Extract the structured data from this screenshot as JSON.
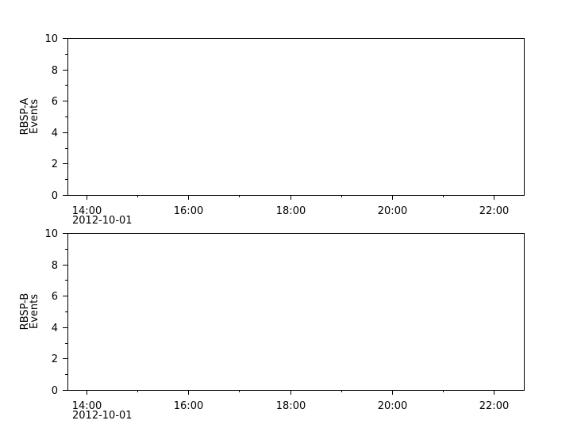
{
  "chart_data": [
    {
      "type": "scatter",
      "ylabel": [
        "RBSP-A",
        "Events"
      ],
      "ylim": [
        0,
        10
      ],
      "yticks": [
        0,
        2,
        4,
        6,
        8,
        10
      ],
      "yminor": [
        1,
        3,
        5,
        7,
        9
      ],
      "xlim": [
        "13:37",
        "22:36"
      ],
      "xticks": [
        "14:00",
        "16:00",
        "18:00",
        "20:00",
        "22:00"
      ],
      "xminor": [
        "15:00",
        "17:00",
        "19:00",
        "21:00"
      ],
      "date_label": "2012-10-01",
      "grid": false,
      "points": []
    },
    {
      "type": "scatter",
      "ylabel": [
        "RBSP-B",
        "Events"
      ],
      "ylim": [
        0,
        10
      ],
      "yticks": [
        0,
        2,
        4,
        6,
        8,
        10
      ],
      "yminor": [
        1,
        3,
        5,
        7,
        9
      ],
      "xlim": [
        "13:37",
        "22:36"
      ],
      "xticks": [
        "14:00",
        "16:00",
        "18:00",
        "20:00",
        "22:00"
      ],
      "xminor": [
        "15:00",
        "17:00",
        "19:00",
        "21:00"
      ],
      "date_label": "2012-10-01",
      "grid": false,
      "points": []
    }
  ]
}
